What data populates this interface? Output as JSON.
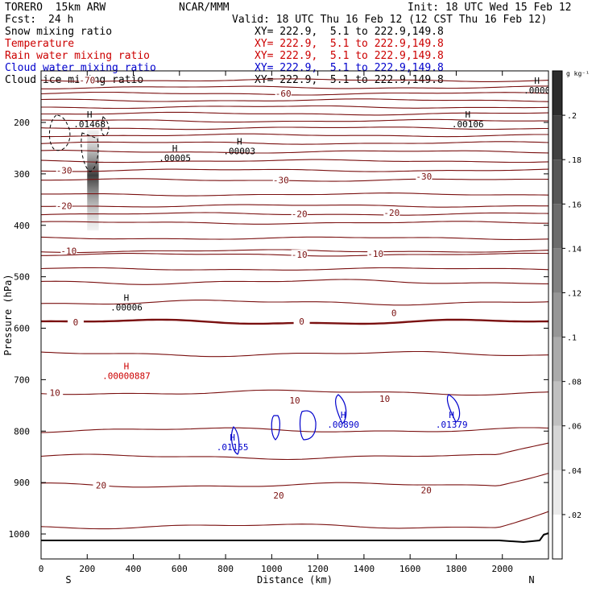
{
  "header": {
    "model": "TORERO  15km ARW",
    "center": "NCAR/MMM",
    "init": "Init: 18 UTC Wed 15 Feb 12",
    "fcst_label": "Fcst:",
    "fcst_value": "24 h",
    "valid": "Valid: 18 UTC Thu 16 Feb 12 (12 CST Thu 16 Feb 12)",
    "valid_xy": "XY= 222.9,  5.1 to 222.9,149.8"
  },
  "legend": [
    {
      "name": "Snow mixing ratio",
      "xy": "XY= 222.9,  5.1 to 222.9,149.8",
      "color": "#000000"
    },
    {
      "name": "Temperature",
      "xy": "XY= 222.9,  5.1 to 222.9,149.8",
      "color": "#cc0000"
    },
    {
      "name": "Rain water mixing ratio",
      "xy": "XY= 222.9,  5.1 to 222.9,149.8",
      "color": "#cc0000"
    },
    {
      "name": "Cloud water mixing ratio",
      "xy": "XY= 222.9,  5.1 to 222.9,149.8",
      "color": "#0000cc"
    },
    {
      "name": "Cloud ice mixing ratio",
      "xy": "XY= 222.9,  5.1 to 222.9,149.8",
      "color": "#000000"
    }
  ],
  "colors": {
    "temperature": "#7a1010",
    "cloud_water": "#0000cc",
    "rain": "#cc0000",
    "snow": "#000000"
  },
  "chart_data": {
    "type": "cross-section",
    "xlabel": "Distance (km)",
    "ylabel": "Pressure (hPa)",
    "xlim": [
      0,
      2200
    ],
    "ylim": [
      1050,
      100
    ],
    "x_ticks": [
      0,
      200,
      400,
      600,
      800,
      1000,
      1200,
      1400,
      1600,
      1800,
      2000
    ],
    "y_ticks": [
      200,
      300,
      400,
      500,
      600,
      700,
      800,
      900,
      1000
    ],
    "left_end": "S",
    "right_end": "N",
    "temperature_contours": [
      {
        "p": 118,
        "label": "-70",
        "lx": 200
      },
      {
        "p": 132
      },
      {
        "p": 144,
        "label": "-60",
        "lx": 1050
      },
      {
        "p": 157
      },
      {
        "p": 170
      },
      {
        "p": 183
      },
      {
        "p": 197
      },
      {
        "p": 211
      },
      {
        "p": 225
      },
      {
        "p": 240
      },
      {
        "p": 257
      },
      {
        "p": 275
      },
      {
        "p": 293,
        "label": "-30",
        "lx": 100
      },
      {
        "p": 312,
        "label": "-30",
        "lx": 1040
      },
      {
        "p": 340
      },
      {
        "p": 362,
        "label": "-20",
        "lx": 100
      },
      {
        "p": 378,
        "label": "-20",
        "lx": 1120
      },
      {
        "p": 395
      },
      {
        "p": 425
      },
      {
        "p": 450,
        "label": "-10",
        "lx": 120
      },
      {
        "p": 457,
        "label": "-10",
        "lx": 1120
      },
      {
        "p": 485
      },
      {
        "p": 510
      },
      {
        "p": 550
      },
      {
        "p": 588,
        "label": "0",
        "lx": 150,
        "bold": true
      },
      {
        "p": 650
      },
      {
        "p": 725,
        "label": "10",
        "lx": 60
      },
      {
        "p": 798
      },
      {
        "p": 850
      },
      {
        "p": 905,
        "label": "20",
        "lx": 260
      },
      {
        "p": 985
      }
    ],
    "extra_labels": [
      {
        "label": "-20",
        "x": 1520,
        "p": 375
      },
      {
        "label": "-10",
        "x": 1450,
        "p": 455
      },
      {
        "label": "-30",
        "x": 1660,
        "p": 305
      },
      {
        "label": "0",
        "x": 1530,
        "p": 570
      },
      {
        "label": "0",
        "x": 1130,
        "p": 587
      },
      {
        "label": "10",
        "x": 1100,
        "p": 740
      },
      {
        "label": "10",
        "x": 1490,
        "p": 737
      },
      {
        "label": "20",
        "x": 1030,
        "p": 925
      },
      {
        "label": "20",
        "x": 1670,
        "p": 915
      }
    ],
    "maxima": [
      {
        "field": "snow",
        "label": ".01468",
        "x": 210,
        "p": 197
      },
      {
        "field": "snow",
        "label": ".00005",
        "x": 580,
        "p": 263
      },
      {
        "field": "snow",
        "label": ".00003",
        "x": 860,
        "p": 249
      },
      {
        "field": "snow",
        "label": ".00106",
        "x": 1850,
        "p": 197
      },
      {
        "field": "snow",
        "label": ".0000",
        "x": 2150,
        "p": 131
      },
      {
        "field": "snow",
        "label": ".00006",
        "x": 370,
        "p": 553
      },
      {
        "field": "rain",
        "label": ".00000887",
        "x": 370,
        "p": 686
      },
      {
        "field": "cloud_water",
        "label": ".00890",
        "x": 1310,
        "p": 781
      },
      {
        "field": "cloud_water",
        "label": ".01379",
        "x": 1780,
        "p": 781
      },
      {
        "field": "cloud_water",
        "label": ".01155",
        "x": 830,
        "p": 825
      }
    ],
    "colorbar": {
      "unit": "g kg⁻¹",
      "ticks": [
        ".02",
        ".04",
        ".06",
        ".08",
        ".1",
        ".12",
        ".14",
        ".16",
        ".18",
        ".2"
      ]
    }
  }
}
